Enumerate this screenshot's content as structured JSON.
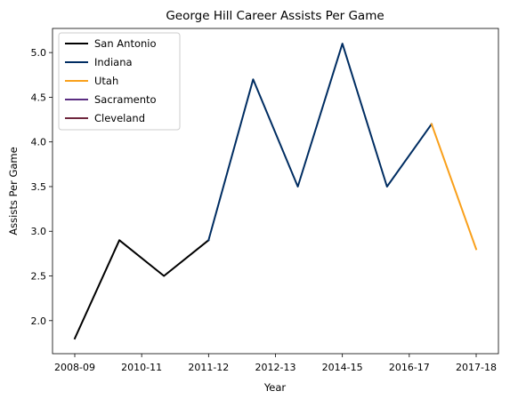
{
  "chart_data": {
    "type": "line",
    "title": "George Hill  Career Assists Per Game",
    "xlabel": "Year",
    "ylabel": "Assists Per Game",
    "x_tick_labels": [
      "2008-09",
      "2010-11",
      "2011-12",
      "2012-13",
      "2014-15",
      "2016-17",
      "2017-18"
    ],
    "y_ticks": [
      2.0,
      2.5,
      3.0,
      3.5,
      4.0,
      4.5,
      5.0
    ],
    "y_tick_labels": [
      "2.0",
      "2.5",
      "3.0",
      "3.5",
      "4.0",
      "4.5",
      "5.0"
    ],
    "ylim": [
      1.63,
      5.27
    ],
    "grid": false,
    "legend_position": "upper left",
    "x_seasons": [
      "2008-09",
      "2009-10",
      "2010-11",
      "2011-12",
      "2012-13",
      "2013-14",
      "2014-15",
      "2015-16",
      "2016-17",
      "2017-18"
    ],
    "series": [
      {
        "name": "San Antonio",
        "color": "#000000",
        "x": [
          "2008-09",
          "2009-10",
          "2010-11",
          "2011-12"
        ],
        "values": [
          1.8,
          2.9,
          2.5,
          2.9
        ]
      },
      {
        "name": "Indiana",
        "color": "#002d62",
        "x": [
          "2011-12",
          "2012-13",
          "2013-14",
          "2014-15",
          "2015-16",
          "2016-17"
        ],
        "values": [
          2.9,
          4.7,
          3.5,
          5.1,
          3.5,
          4.2
        ]
      },
      {
        "name": "Utah",
        "color": "#f9a01b",
        "x": [
          "2016-17",
          "2017-18"
        ],
        "values": [
          4.2,
          2.8
        ]
      },
      {
        "name": "Sacramento",
        "color": "#5a2d81",
        "x": [],
        "values": []
      },
      {
        "name": "Cleveland",
        "color": "#6f263d",
        "x": [],
        "values": []
      }
    ]
  }
}
